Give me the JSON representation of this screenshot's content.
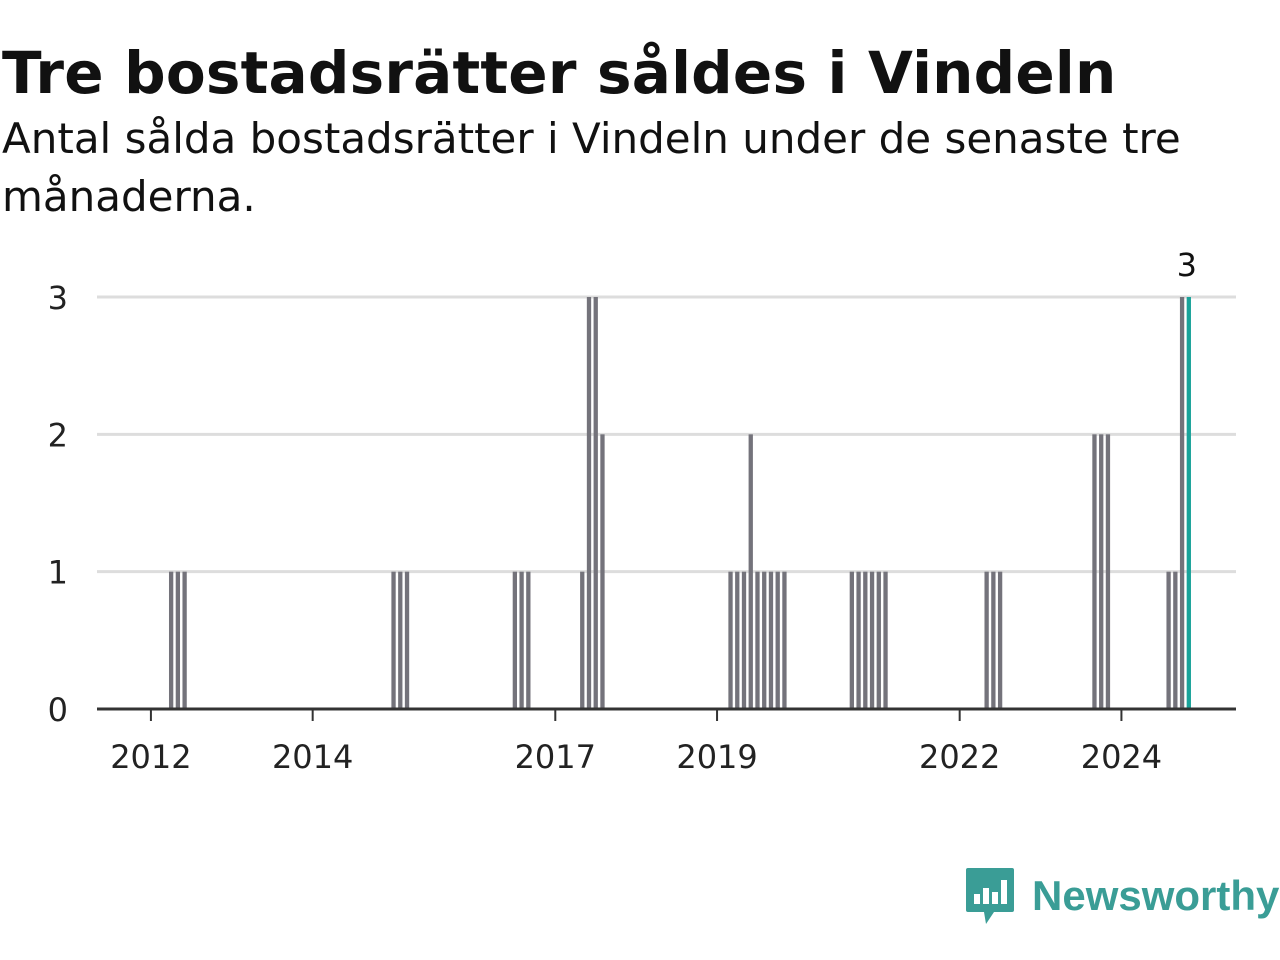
{
  "title": "Tre bostadsrätter såldes i Vindeln",
  "subtitle": "Antal sålda bostadsrätter i Vindeln under de senaste tre månaderna.",
  "brand": {
    "name": "Newsworthy",
    "logo_icon": "bar-chart-speech-bubble-icon",
    "color": "#3a9d96"
  },
  "colors": {
    "bar": "#74737b",
    "highlight": "#1aa39a",
    "grid": "#dddddd",
    "axis": "#333333"
  },
  "chart_data": {
    "type": "bar",
    "title": "Tre bostadsrätter såldes i Vindeln",
    "subtitle": "Antal sålda bostadsrätter i Vindeln under de senaste tre månaderna.",
    "xlabel": "",
    "ylabel": "",
    "ylim": [
      0,
      3
    ],
    "yticks": [
      0,
      1,
      2,
      3
    ],
    "grid": true,
    "x_axis_type": "time (monthly rolling 3-month periods)",
    "xlim": [
      "2011-05",
      "2025-06"
    ],
    "xticks": [
      {
        "date": "2012-01",
        "label": "2012"
      },
      {
        "date": "2014-01",
        "label": "2014"
      },
      {
        "date": "2017-01",
        "label": "2017"
      },
      {
        "date": "2019-01",
        "label": "2019"
      },
      {
        "date": "2022-01",
        "label": "2022"
      },
      {
        "date": "2024-01",
        "label": "2024"
      }
    ],
    "series": [
      {
        "points": [
          {
            "x": "2012-04",
            "y": 1
          },
          {
            "x": "2012-05",
            "y": 1
          },
          {
            "x": "2012-06",
            "y": 1
          },
          {
            "x": "2015-01",
            "y": 1
          },
          {
            "x": "2015-02",
            "y": 1
          },
          {
            "x": "2015-03",
            "y": 1
          },
          {
            "x": "2016-07",
            "y": 1
          },
          {
            "x": "2016-08",
            "y": 1
          },
          {
            "x": "2016-09",
            "y": 1
          },
          {
            "x": "2017-05",
            "y": 1
          },
          {
            "x": "2017-06",
            "y": 3
          },
          {
            "x": "2017-07",
            "y": 3
          },
          {
            "x": "2017-08",
            "y": 2
          },
          {
            "x": "2019-03",
            "y": 1
          },
          {
            "x": "2019-04",
            "y": 1
          },
          {
            "x": "2019-05",
            "y": 1
          },
          {
            "x": "2019-06",
            "y": 2
          },
          {
            "x": "2019-07",
            "y": 1
          },
          {
            "x": "2019-08",
            "y": 1
          },
          {
            "x": "2019-09",
            "y": 1
          },
          {
            "x": "2019-10",
            "y": 1
          },
          {
            "x": "2019-11",
            "y": 1
          },
          {
            "x": "2020-09",
            "y": 1
          },
          {
            "x": "2020-10",
            "y": 1
          },
          {
            "x": "2020-11",
            "y": 1
          },
          {
            "x": "2020-12",
            "y": 1
          },
          {
            "x": "2021-01",
            "y": 1
          },
          {
            "x": "2021-02",
            "y": 1
          },
          {
            "x": "2022-05",
            "y": 1
          },
          {
            "x": "2022-06",
            "y": 1
          },
          {
            "x": "2022-07",
            "y": 1
          },
          {
            "x": "2023-09",
            "y": 2
          },
          {
            "x": "2023-10",
            "y": 2
          },
          {
            "x": "2023-11",
            "y": 2
          },
          {
            "x": "2024-08",
            "y": 1
          },
          {
            "x": "2024-09",
            "y": 1
          },
          {
            "x": "2024-10",
            "y": 3
          },
          {
            "x": "2024-11",
            "y": 3
          }
        ]
      }
    ],
    "highlight": {
      "x": "2024-11",
      "y": 3,
      "label": "3"
    }
  }
}
